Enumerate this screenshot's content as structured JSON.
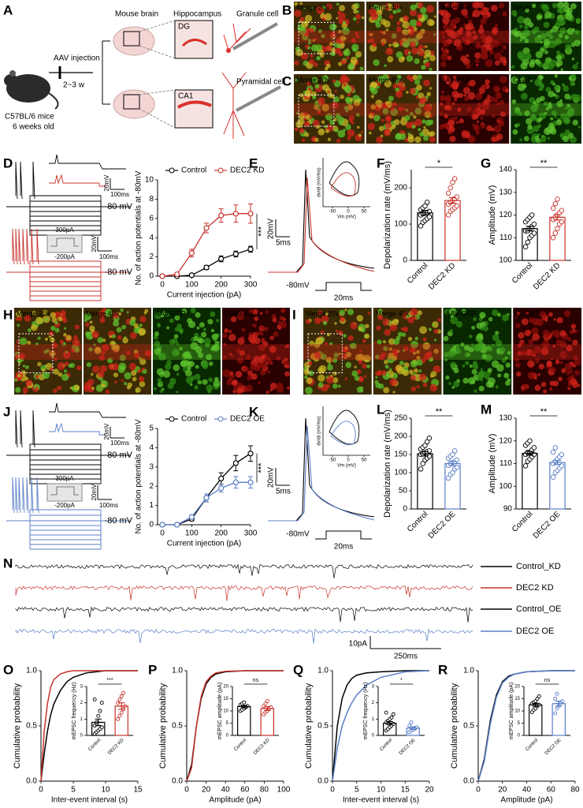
{
  "schematic": {
    "label": "A",
    "mouse_brain": "Mouse brain",
    "hippocampus": "Hippocampus",
    "granule_cell": "Granule cell",
    "injection": "AAV injection",
    "duration": "2~3 w",
    "mice": "C57BL/6 mice",
    "age": "6 weeks old",
    "dg": "DG",
    "ca1": "CA1",
    "pyramidal_cell": "Pyramidal cell"
  },
  "micrographs": [
    {
      "label": "B",
      "tiles": [
        "Merge 20x",
        "Merge 40x",
        "AAV-RFP",
        "NeuN"
      ]
    },
    {
      "label": "C",
      "tiles": [
        "Merge 20x",
        "Merge 40x",
        "AAV-RFP",
        "GFAP"
      ]
    },
    {
      "label": "H",
      "tiles": [
        "Merge 20x",
        "Merge 40x",
        "AAV-GFP",
        "CaMKIIα"
      ]
    },
    {
      "label": "I",
      "tiles": [
        "Merge 20x",
        "Merge 40x",
        "AAV-GFP",
        "GAD67"
      ]
    }
  ],
  "traces": [
    {
      "label": "D",
      "scales": [
        "20mV",
        "100ms",
        "-80 mV",
        "300pA",
        "-200pA",
        "20mV",
        "100ms",
        "-80 mV"
      ]
    },
    {
      "label": "E",
      "scales": [
        "20mV",
        "5ms",
        "-80mV",
        "20ms"
      ],
      "phase": {
        "xlabel": "Vm (mV)",
        "ylabel": "dv/dt (mV/ms)",
        "xlim": [
          -80,
          70
        ],
        "xticks": [
          -50,
          0,
          50
        ]
      }
    },
    {
      "label": "J",
      "scales": [
        "20mV",
        "100ms",
        "-80 mV",
        "300pA",
        "-200pA",
        "20mV",
        "100ms",
        "-80 mV"
      ]
    },
    {
      "label": "K",
      "scales": [
        "20mV",
        "5ms",
        "-80mV",
        "20ms"
      ],
      "phase": {
        "xlabel": "Vm (mV)",
        "ylabel": "dv/dt (mV/ms)",
        "xlim": [
          -80,
          70
        ],
        "xticks": [
          -50,
          0,
          50
        ]
      }
    }
  ],
  "mepsc": {
    "label": "N",
    "legend": [
      {
        "name": "Control_KD",
        "color": "#000000"
      },
      {
        "name": "DEC2 KD",
        "color": "#c8332c"
      },
      {
        "name": "Control_OE",
        "color": "#000000"
      },
      {
        "name": "DEC2 OE",
        "color": "#5b7fc7"
      }
    ],
    "scale": [
      "10pA",
      "250ms"
    ]
  },
  "chart_data": [
    {
      "type": "line",
      "label": "D",
      "xlabel": "Current injection (pA)",
      "ylabel": "No. of action potentials at -80mV",
      "x": [
        0,
        50,
        100,
        150,
        200,
        250,
        300
      ],
      "xlim": [
        0,
        300
      ],
      "xticks": [
        0,
        100,
        200,
        300
      ],
      "ylim": [
        0,
        10
      ],
      "yticks": [
        0,
        2,
        4,
        6,
        8,
        10
      ],
      "series": [
        {
          "name": "Control",
          "color": "#000000",
          "values": [
            0,
            0,
            0.1,
            0.9,
            1.8,
            2.3,
            2.8
          ],
          "errors": [
            0,
            0,
            0.1,
            0.2,
            0.3,
            0.3,
            0.3
          ]
        },
        {
          "name": "DEC2 KD",
          "color": "#c8332c",
          "values": [
            0,
            0.2,
            2.4,
            5.0,
            6.3,
            6.5,
            6.5
          ],
          "errors": [
            0,
            0.1,
            0.4,
            0.5,
            0.7,
            0.9,
            1.0
          ]
        }
      ],
      "significance": "***"
    },
    {
      "type": "dotbar",
      "label": "F",
      "ylabel": "Depolarization rate (mV/ms)",
      "categories": [
        "Control",
        "DEC2 KD"
      ],
      "colors": [
        "#000000",
        "#c8332c"
      ],
      "values": [
        131,
        165
      ],
      "errors": [
        6,
        8
      ],
      "ylim": [
        0,
        250
      ],
      "yticks": [
        0,
        100,
        200
      ],
      "points": [
        [
          95,
          105,
          110,
          115,
          120,
          125,
          128,
          130,
          132,
          135,
          140,
          145,
          150,
          160
        ],
        [
          125,
          135,
          140,
          145,
          150,
          155,
          160,
          165,
          170,
          175,
          185,
          200,
          215,
          225
        ]
      ],
      "significance": "*"
    },
    {
      "type": "dotbar",
      "label": "G",
      "ylabel": "Amplitude (mV)",
      "categories": [
        "Control",
        "DEC2 KD"
      ],
      "colors": [
        "#000000",
        "#c8332c"
      ],
      "values": [
        114,
        119
      ],
      "errors": [
        1,
        1.2
      ],
      "ylim": [
        100,
        140
      ],
      "yticks": [
        100,
        110,
        120,
        130,
        140
      ],
      "points": [
        [
          106,
          108,
          110,
          111,
          112,
          113,
          113,
          114,
          115,
          116,
          117,
          118,
          119,
          120
        ],
        [
          110,
          112,
          114,
          116,
          117,
          118,
          119,
          120,
          121,
          122,
          123,
          125,
          127
        ]
      ],
      "significance": "**"
    },
    {
      "type": "line",
      "label": "J",
      "xlabel": "Current injection (pA)",
      "ylabel": "No. of action potentials at -80mV",
      "x": [
        0,
        50,
        100,
        150,
        200,
        250,
        300
      ],
      "xlim": [
        0,
        300
      ],
      "xticks": [
        0,
        100,
        200,
        300
      ],
      "ylim": [
        0,
        5
      ],
      "yticks": [
        0,
        1,
        2,
        3,
        4,
        5
      ],
      "series": [
        {
          "name": "Control",
          "color": "#000000",
          "values": [
            0,
            0,
            0.3,
            1.4,
            2.4,
            3.2,
            3.7
          ],
          "errors": [
            0,
            0,
            0.1,
            0.2,
            0.3,
            0.4,
            0.4
          ]
        },
        {
          "name": "DEC2 OE",
          "color": "#5b7fc7",
          "values": [
            0,
            0,
            0.4,
            1.4,
            1.9,
            2.2,
            2.2
          ],
          "errors": [
            0,
            0,
            0.1,
            0.2,
            0.2,
            0.3,
            0.3
          ]
        }
      ],
      "significance": "***"
    },
    {
      "type": "dotbar",
      "label": "L",
      "ylabel": "Depolarization rate (mV/ms)",
      "categories": [
        "Control",
        "DEC2 OE"
      ],
      "colors": [
        "#000000",
        "#5b7fc7"
      ],
      "values": [
        152,
        125
      ],
      "errors": [
        6,
        6
      ],
      "ylim": [
        0,
        250
      ],
      "yticks": [
        0,
        50,
        100,
        150,
        200,
        250
      ],
      "points": [
        [
          110,
          125,
          135,
          140,
          145,
          150,
          152,
          155,
          158,
          160,
          165,
          170,
          175,
          185,
          195
        ],
        [
          85,
          95,
          100,
          110,
          115,
          120,
          125,
          128,
          130,
          135,
          140,
          145,
          150,
          160
        ]
      ],
      "significance": "**"
    },
    {
      "type": "dotbar",
      "label": "M",
      "ylabel": "Amplitude (mV)",
      "categories": [
        "Control",
        "DEC2 OE"
      ],
      "colors": [
        "#000000",
        "#5b7fc7"
      ],
      "values": [
        114.5,
        110.5
      ],
      "errors": [
        0.8,
        0.9
      ],
      "ylim": [
        90,
        130
      ],
      "yticks": [
        90,
        100,
        110,
        120,
        130
      ],
      "points": [
        [
          109,
          111,
          112,
          113,
          114,
          114,
          115,
          115,
          116,
          117,
          118,
          119,
          120
        ],
        [
          104,
          106,
          107,
          108,
          109,
          110,
          111,
          112,
          113,
          114,
          115,
          117
        ]
      ],
      "significance": "**"
    },
    {
      "type": "cdf",
      "label": "O",
      "xlabel": "Inter-event interval (s)",
      "ylabel": "Cumulative probability",
      "xlim": [
        0,
        15
      ],
      "xticks": [
        0,
        5,
        10,
        15
      ],
      "ylim": [
        0,
        1
      ],
      "yticks": [
        {
          "value": 0,
          "label": "0.0"
        },
        {
          "value": 0.5,
          "label": "0.5"
        },
        {
          "value": 1,
          "label": "1.0"
        }
      ],
      "series": [
        {
          "color": "#000000",
          "x": [
            0,
            0.5,
            1,
            1.5,
            2,
            3,
            4,
            5,
            7,
            10,
            15
          ],
          "values": [
            0,
            0.25,
            0.45,
            0.6,
            0.7,
            0.82,
            0.9,
            0.94,
            0.98,
            1,
            1
          ]
        },
        {
          "color": "#c8332c",
          "x": [
            0,
            0.5,
            1,
            1.5,
            2,
            3,
            4,
            5,
            7,
            10,
            15
          ],
          "values": [
            0,
            0.45,
            0.7,
            0.85,
            0.92,
            0.97,
            0.99,
            1,
            1,
            1,
            1
          ]
        }
      ],
      "inset": {
        "type": "dotbar",
        "ylabel": "mEPSC frequency (Hz)",
        "categories": [
          "Control",
          "DEC2 KD"
        ],
        "colors": [
          "#000000",
          "#c8332c"
        ],
        "values": [
          0.8,
          1.8
        ],
        "errors": [
          0.2,
          0.2
        ],
        "ylim": [
          0,
          3
        ],
        "yticks": [
          0,
          1,
          2,
          3
        ],
        "points": [
          [
            0.1,
            0.2,
            0.3,
            0.4,
            0.5,
            0.6,
            0.8,
            1.2,
            1.5,
            2.0,
            2.2
          ],
          [
            1.0,
            1.2,
            1.4,
            1.6,
            1.8,
            2.0,
            2.2,
            2.4,
            2.6
          ]
        ],
        "significance": "***"
      }
    },
    {
      "type": "cdf",
      "label": "P",
      "xlabel": "Amplitude (pA)",
      "ylabel": "Cumulative probability",
      "xlim": [
        0,
        100
      ],
      "xticks": [
        0,
        20,
        40,
        60,
        80,
        100
      ],
      "ylim": [
        0,
        1
      ],
      "yticks": [
        {
          "value": 0,
          "label": "0.0"
        },
        {
          "value": 0.5,
          "label": "0.5"
        },
        {
          "value": 1,
          "label": "1.0"
        }
      ],
      "series": [
        {
          "color": "#000000",
          "x": [
            0,
            5,
            10,
            15,
            20,
            25,
            30,
            40,
            60,
            100
          ],
          "values": [
            0,
            0.15,
            0.5,
            0.75,
            0.88,
            0.94,
            0.97,
            0.99,
            1,
            1
          ]
        },
        {
          "color": "#c8332c",
          "x": [
            0,
            5,
            10,
            15,
            20,
            25,
            30,
            40,
            60,
            100
          ],
          "values": [
            0,
            0.12,
            0.5,
            0.77,
            0.9,
            0.95,
            0.98,
            0.995,
            1,
            1
          ]
        }
      ],
      "inset": {
        "type": "dotbar",
        "ylabel": "mEPSC amplitude (pA)",
        "categories": [
          "Control",
          "DEC2 KD"
        ],
        "colors": [
          "#000000",
          "#c8332c"
        ],
        "values": [
          11.8,
          11
        ],
        "errors": [
          0.5,
          0.8
        ],
        "ylim": [
          0,
          20
        ],
        "yticks": [
          0,
          5,
          10,
          15,
          20
        ],
        "points": [
          [
            10,
            10.5,
            11,
            11.5,
            12,
            12.5,
            13,
            13.5
          ],
          [
            8.5,
            9.5,
            10,
            11,
            11.5,
            12,
            13,
            14
          ]
        ],
        "significance": "ns"
      }
    },
    {
      "type": "cdf",
      "label": "Q",
      "xlabel": "Inter-event interval (s)",
      "ylabel": "Cumulative probability",
      "xlim": [
        0,
        20
      ],
      "xticks": [
        0,
        5,
        10,
        15,
        20
      ],
      "ylim": [
        0,
        1
      ],
      "yticks": [
        {
          "value": 0,
          "label": "0.0"
        },
        {
          "value": 0.5,
          "label": "0.5"
        },
        {
          "value": 1,
          "label": "1.0"
        }
      ],
      "series": [
        {
          "color": "#000000",
          "x": [
            0,
            1,
            2,
            3,
            4,
            5,
            7,
            10,
            15,
            20
          ],
          "values": [
            0,
            0.5,
            0.75,
            0.87,
            0.93,
            0.96,
            0.98,
            0.99,
            1,
            1
          ]
        },
        {
          "color": "#5b7fc7",
          "x": [
            0,
            1,
            2,
            3,
            4,
            5,
            7,
            10,
            15,
            20
          ],
          "values": [
            0,
            0.3,
            0.5,
            0.62,
            0.71,
            0.78,
            0.87,
            0.94,
            0.99,
            1
          ]
        }
      ],
      "inset": {
        "type": "dotbar",
        "ylabel": "mEPSC frequency (Hz)",
        "categories": [
          "Control",
          "DEC2 OE"
        ],
        "colors": [
          "#000000",
          "#5b7fc7"
        ],
        "values": [
          0.75,
          0.45
        ],
        "errors": [
          0.1,
          0.08
        ],
        "ylim": [
          0,
          3
        ],
        "yticks": [
          0,
          1,
          2,
          3
        ],
        "points": [
          [
            0.3,
            0.4,
            0.5,
            0.6,
            0.7,
            0.8,
            0.9,
            1.0,
            1.1,
            1.3,
            1.4
          ],
          [
            0.2,
            0.3,
            0.35,
            0.4,
            0.5,
            0.6,
            0.8
          ]
        ],
        "significance": "*"
      }
    },
    {
      "type": "cdf",
      "label": "R",
      "xlabel": "Amplitude (pA)",
      "ylabel": "Cumulative probability",
      "xlim": [
        0,
        80
      ],
      "xticks": [
        0,
        20,
        40,
        60,
        80
      ],
      "ylim": [
        0,
        1
      ],
      "yticks": [
        {
          "value": 0,
          "label": "0.0"
        },
        {
          "value": 0.5,
          "label": "0.5"
        },
        {
          "value": 1,
          "label": "1.0"
        }
      ],
      "series": [
        {
          "color": "#000000",
          "x": [
            0,
            5,
            10,
            15,
            20,
            25,
            30,
            40,
            60,
            80
          ],
          "values": [
            0,
            0.2,
            0.55,
            0.78,
            0.9,
            0.95,
            0.97,
            0.99,
            1,
            1
          ]
        },
        {
          "color": "#5b7fc7",
          "x": [
            0,
            5,
            10,
            15,
            20,
            25,
            30,
            40,
            60,
            80
          ],
          "values": [
            0,
            0.18,
            0.52,
            0.76,
            0.89,
            0.94,
            0.97,
            0.99,
            1,
            1
          ]
        }
      ],
      "inset": {
        "type": "dotbar",
        "ylabel": "mEPSC amplitude (pA)",
        "categories": [
          "Control",
          "DEC2 OE"
        ],
        "colors": [
          "#000000",
          "#5b7fc7"
        ],
        "values": [
          12.5,
          13
        ],
        "errors": [
          0.6,
          1
        ],
        "ylim": [
          0,
          20
        ],
        "yticks": [
          0,
          5,
          10,
          15,
          20
        ],
        "points": [
          [
            9.5,
            10.5,
            11,
            12,
            12.5,
            13,
            13.5,
            14,
            15,
            16
          ],
          [
            9,
            11,
            12,
            13,
            14,
            15,
            17
          ]
        ],
        "significance": "ns"
      }
    }
  ]
}
